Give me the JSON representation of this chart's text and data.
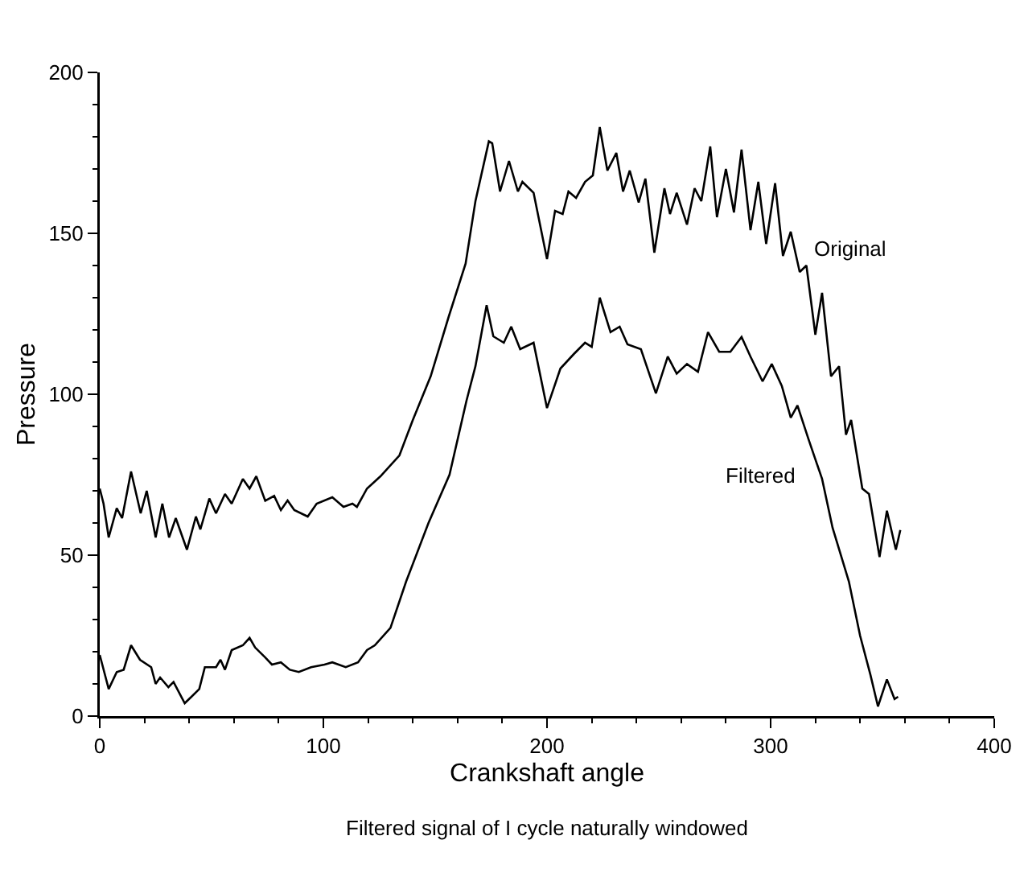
{
  "chart_data": {
    "type": "line",
    "xlabel": "Crankshaft angle",
    "ylabel": "Pressure",
    "annotations": [
      "Filtered signal of I cycle naturally windowed"
    ],
    "xlim": [
      0,
      400
    ],
    "xticks": [
      0,
      100,
      200,
      300,
      400
    ],
    "ylim": [
      0,
      200
    ],
    "yticks": [
      0,
      50,
      100,
      150,
      200
    ],
    "grid": false,
    "legend": false,
    "marker": "none",
    "line_style": "solid",
    "series": [
      {
        "name": "Original",
        "color": "#000000",
        "x": [
          0,
          1.7,
          4,
          7.6,
          10,
          14,
          18.3,
          21,
          25,
          28,
          31,
          34,
          39,
          43,
          45,
          49,
          52,
          56,
          59,
          64,
          67,
          70,
          74,
          78,
          81,
          84,
          87,
          93,
          97,
          104,
          109,
          113,
          115,
          119.5,
          125.5,
          134,
          140,
          148,
          156,
          163.6,
          168,
          174,
          175.5,
          179,
          183,
          187,
          189,
          194,
          200,
          203.6,
          207,
          209.6,
          213,
          217,
          220.5,
          223.6,
          227,
          231,
          234,
          237,
          241,
          244,
          248,
          252.5,
          255,
          258,
          262.6,
          266,
          269,
          273,
          276,
          280,
          283.6,
          287,
          291,
          294.5,
          298,
          302,
          305.5,
          309,
          313,
          316,
          320,
          323,
          327,
          330.6,
          333.7,
          336,
          341,
          344,
          348.7,
          352,
          356,
          358
        ],
        "values": [
          70.7,
          66,
          55.5,
          64.6,
          61.5,
          76,
          63,
          70,
          55.5,
          66,
          55.5,
          61.5,
          51.7,
          62,
          58,
          67.6,
          63,
          69,
          66,
          73.7,
          70.7,
          74.5,
          66.9,
          68.4,
          64,
          67,
          64,
          62,
          66,
          68,
          65,
          66,
          65,
          70.7,
          74.5,
          81,
          92,
          105.6,
          124,
          140.6,
          160,
          178.6,
          178,
          163,
          172.5,
          163,
          166,
          162.6,
          142,
          157,
          156,
          163,
          161,
          166,
          168,
          183,
          169.5,
          175,
          163,
          169.5,
          159.6,
          167,
          144,
          164,
          156,
          162.6,
          152.7,
          164,
          160,
          177,
          155,
          170,
          156.5,
          176,
          151,
          166,
          146.7,
          165.6,
          143,
          150.5,
          138,
          140,
          118.5,
          131.5,
          105.6,
          108.7,
          87.4,
          92,
          70.7,
          69,
          49.4,
          63.8,
          51.7,
          57.8
        ]
      },
      {
        "name": "Filtered",
        "color": "#000000",
        "x": [
          0,
          4,
          7.6,
          10.7,
          14,
          18,
          23,
          25,
          27,
          30.7,
          33,
          38,
          41,
          44.5,
          47,
          52,
          54,
          56,
          59,
          64,
          67,
          69.5,
          74,
          77,
          81,
          85,
          89,
          94.5,
          100.5,
          104,
          110,
          115.5,
          119.5,
          123,
          130,
          137,
          147,
          156.4,
          164,
          168,
          173,
          176,
          180.7,
          184,
          188,
          194,
          200,
          206,
          212,
          217,
          220,
          223.6,
          228.4,
          232.5,
          236,
          242,
          248.7,
          254,
          258,
          262.6,
          267.5,
          272,
          277,
          282,
          287,
          291,
          296.4,
          300.5,
          305,
          309,
          312,
          317,
          323,
          327.7,
          335,
          340,
          344.6,
          348,
          352,
          355.4,
          357
        ],
        "values": [
          19,
          8.4,
          13.7,
          14.4,
          22,
          17.5,
          15.2,
          10,
          12,
          9,
          10.6,
          4,
          6,
          8.4,
          15.2,
          15.2,
          17.5,
          14.4,
          20.5,
          22,
          24.3,
          21.3,
          18.2,
          16,
          16.7,
          14.4,
          13.7,
          15.2,
          16,
          16.7,
          15.2,
          16.7,
          20.5,
          22,
          27.4,
          41.8,
          60,
          75,
          98,
          108.7,
          127.7,
          118,
          116,
          121,
          114,
          116,
          95.7,
          108,
          112.5,
          116,
          114.7,
          130,
          119.3,
          121,
          115.5,
          114,
          100.3,
          111.7,
          106.4,
          109.4,
          107,
          119.3,
          113.2,
          113.2,
          117.8,
          111.7,
          104,
          109.4,
          102.6,
          92.7,
          96.5,
          85.9,
          73.7,
          58.5,
          41.8,
          25,
          12.9,
          3,
          11.4,
          5.3,
          6
        ]
      }
    ]
  }
}
